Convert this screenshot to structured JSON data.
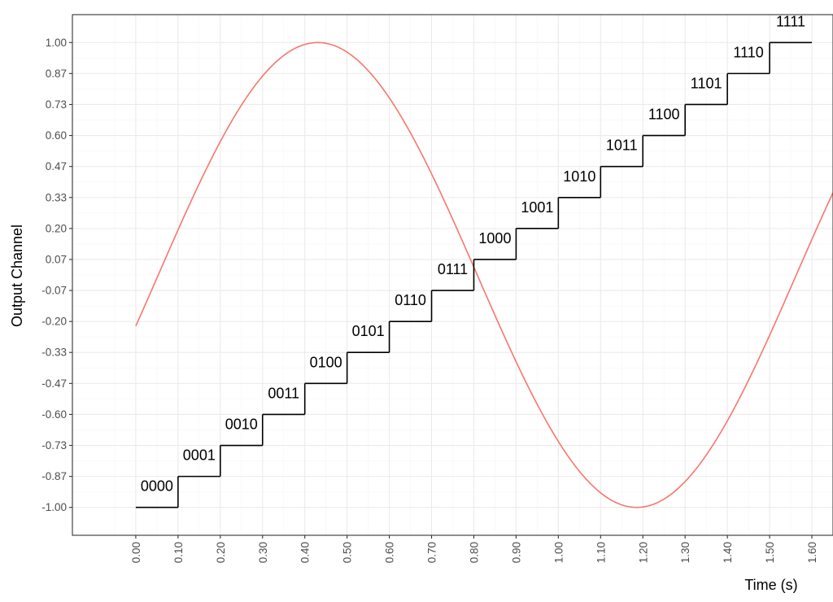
{
  "chart_data": {
    "type": "line",
    "title": "",
    "xlabel": "Time (s)",
    "ylabel": "Output Channel",
    "xlim": [
      -0.15,
      1.65
    ],
    "ylim": [
      -1.12,
      1.12
    ],
    "x_ticks": [
      0.0,
      0.1,
      0.2,
      0.3,
      0.4,
      0.5,
      0.6,
      0.7,
      0.8,
      0.9,
      1.0,
      1.1,
      1.2,
      1.3,
      1.4,
      1.5,
      1.6
    ],
    "x_tick_labels": [
      "0.00",
      "0.10",
      "0.20",
      "0.30",
      "0.40",
      "0.50",
      "0.60",
      "0.70",
      "0.80",
      "0.90",
      "1.00",
      "1.10",
      "1.20",
      "1.30",
      "1.40",
      "1.50",
      "1.60"
    ],
    "y_ticks": [
      -1.0,
      -0.8667,
      -0.7333,
      -0.6,
      -0.4667,
      -0.3333,
      -0.2,
      -0.0667,
      0.0667,
      0.2,
      0.3333,
      0.4667,
      0.6,
      0.7333,
      0.8667,
      1.0
    ],
    "y_tick_labels": [
      "-1.00",
      "-0.87",
      "-0.73",
      "-0.60",
      "-0.47",
      "-0.33",
      "-0.20",
      "-0.07",
      "0.07",
      "0.20",
      "0.33",
      "0.47",
      "0.60",
      "0.73",
      "0.87",
      "1.00"
    ],
    "grid": true,
    "series": [
      {
        "kind": "sine",
        "color": "#F8766D",
        "x_range": [
          0.0,
          1.65
        ],
        "amplitude": 1.0,
        "frequency_hz": 0.6623,
        "phase_rad": -0.2213
      },
      {
        "kind": "step",
        "color": "#000000",
        "steps": [
          {
            "x0": 0.0,
            "x1": 0.1,
            "y": -1.0,
            "label": "0000"
          },
          {
            "x0": 0.1,
            "x1": 0.2,
            "y": -0.8667,
            "label": "0001"
          },
          {
            "x0": 0.2,
            "x1": 0.3,
            "y": -0.7333,
            "label": "0010"
          },
          {
            "x0": 0.3,
            "x1": 0.4,
            "y": -0.6,
            "label": "0011"
          },
          {
            "x0": 0.4,
            "x1": 0.5,
            "y": -0.4667,
            "label": "0100"
          },
          {
            "x0": 0.5,
            "x1": 0.6,
            "y": -0.3333,
            "label": "0101"
          },
          {
            "x0": 0.6,
            "x1": 0.7,
            "y": -0.2,
            "label": "0110"
          },
          {
            "x0": 0.7,
            "x1": 0.8,
            "y": -0.0667,
            "label": "0111"
          },
          {
            "x0": 0.8,
            "x1": 0.9,
            "y": 0.0667,
            "label": "1000"
          },
          {
            "x0": 0.9,
            "x1": 1.0,
            "y": 0.2,
            "label": "1001"
          },
          {
            "x0": 1.0,
            "x1": 1.1,
            "y": 0.3333,
            "label": "1010"
          },
          {
            "x0": 1.1,
            "x1": 1.2,
            "y": 0.4667,
            "label": "1011"
          },
          {
            "x0": 1.2,
            "x1": 1.3,
            "y": 0.6,
            "label": "1100"
          },
          {
            "x0": 1.3,
            "x1": 1.4,
            "y": 0.7333,
            "label": "1101"
          },
          {
            "x0": 1.4,
            "x1": 1.5,
            "y": 0.8667,
            "label": "1110"
          },
          {
            "x0": 1.5,
            "x1": 1.6,
            "y": 1.0,
            "label": "1111"
          }
        ]
      }
    ]
  }
}
